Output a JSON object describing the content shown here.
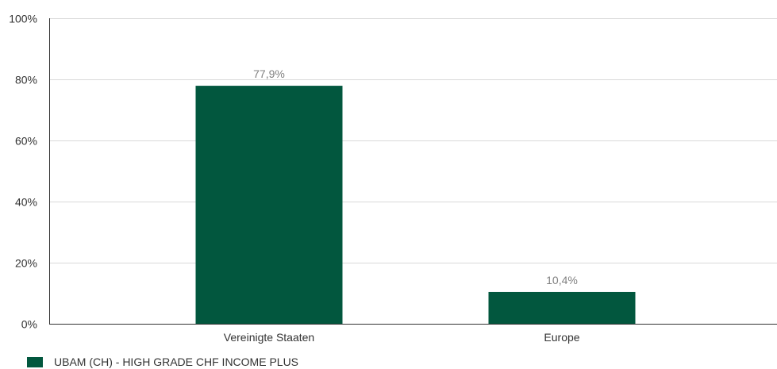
{
  "chart_data": {
    "type": "bar",
    "categories": [
      "Vereinigte Staaten",
      "Europe"
    ],
    "series": [
      {
        "name": "UBAM (CH) - HIGH GRADE CHF INCOME PLUS",
        "values": [
          77.9,
          10.4
        ],
        "data_labels": [
          "77,9%",
          "10,4%"
        ],
        "color": "#02573e"
      }
    ],
    "ylim": [
      0,
      100
    ],
    "yticks": [
      0,
      20,
      40,
      60,
      80,
      100
    ],
    "ytick_labels": [
      "0%",
      "20%",
      "40%",
      "60%",
      "80%",
      "100%"
    ],
    "grid": true,
    "legend_position": "bottom-left",
    "colors": {
      "bar": "#02573e",
      "grid": "#d9d9d9",
      "axis": "#333333",
      "data_label": "#808080"
    }
  }
}
